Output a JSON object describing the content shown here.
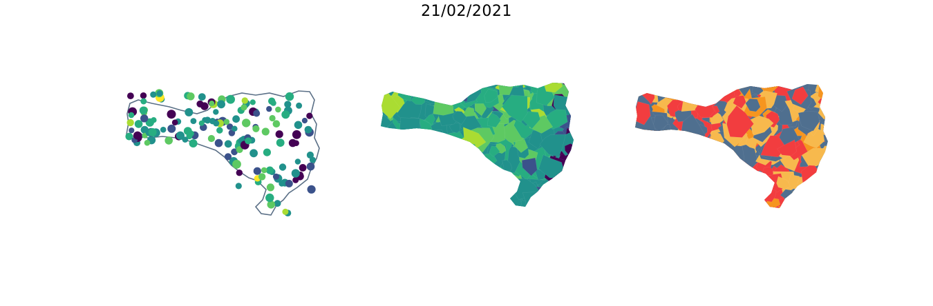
{
  "title": "21/02/2021",
  "colors": {
    "outline": "#5a6f86",
    "viridis": [
      "#440154",
      "#3b528b",
      "#21918c",
      "#27ad81",
      "#5ec962",
      "#aadc32",
      "#fde725"
    ],
    "risk": [
      "#4f6f8f",
      "#f7b94d",
      "#f6951f",
      "#f23d3f"
    ]
  },
  "panels": [
    {
      "kind": "points-on-outline",
      "palette": "viridis"
    },
    {
      "kind": "choropleth",
      "palette": "viridis"
    },
    {
      "kind": "choropleth",
      "palette": "risk"
    }
  ]
}
